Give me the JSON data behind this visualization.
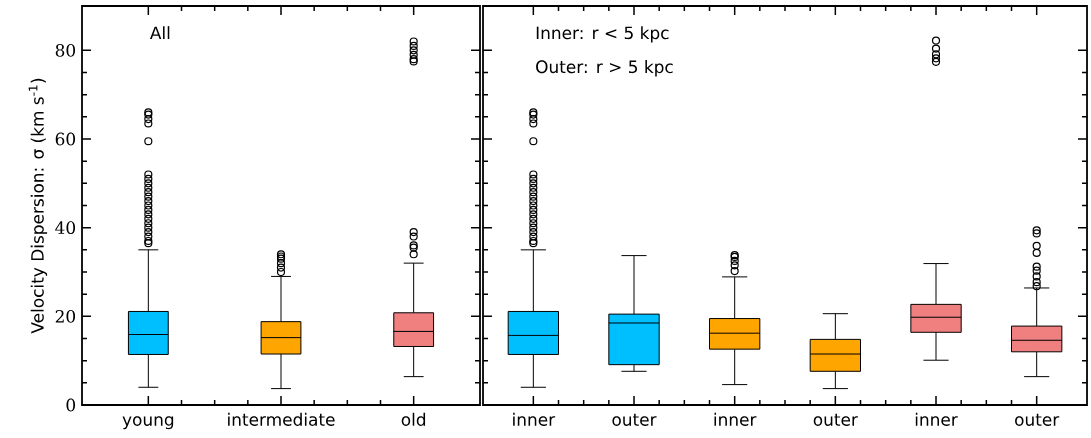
{
  "chart_data": [
    {
      "type": "box",
      "categories": [
        "young",
        "intermediate",
        "old"
      ],
      "colors": [
        "#00bfff",
        "#ffa500",
        "#f08080"
      ],
      "ylabel": "Velocity Dispersion: σ (km s$^{-1}$)",
      "ylim": [
        0,
        90
      ],
      "yticks": [
        0,
        20,
        40,
        60,
        80
      ],
      "marker": "circle",
      "annotations": [
        "All"
      ],
      "boxes": [
        {
          "low": 4.0,
          "q1": 11.4,
          "median": 15.9,
          "q3": 21.1,
          "high": 35.0,
          "outliers": [
            36.5,
            37,
            38,
            39,
            40,
            41,
            42,
            43,
            44,
            45,
            46,
            47,
            48,
            49,
            50,
            51,
            52,
            59.5,
            63.5,
            64.5,
            65.5,
            66
          ]
        },
        {
          "low": 3.7,
          "q1": 11.5,
          "median": 15.2,
          "q3": 18.8,
          "high": 29.0,
          "outliers": [
            30,
            31,
            32,
            33,
            33.5,
            34
          ]
        },
        {
          "low": 6.4,
          "q1": 13.2,
          "median": 16.6,
          "q3": 20.8,
          "high": 32.0,
          "outliers": [
            34,
            35.5,
            36,
            38,
            39,
            77.5,
            78,
            79,
            80,
            81,
            82
          ]
        }
      ]
    },
    {
      "type": "box",
      "categories": [
        "inner",
        "outer",
        "inner",
        "outer",
        "inner",
        "outer"
      ],
      "colors": [
        "#00bfff",
        "#00bfff",
        "#ffa500",
        "#ffa500",
        "#f08080",
        "#f08080"
      ],
      "ylim": [
        0,
        90
      ],
      "yticks": [
        0,
        20,
        40,
        60,
        80
      ],
      "tick_labels": "x",
      "marker": "circle",
      "annotations": [
        "Inner: r < 5 kpc",
        "Outer: r > 5 kpc"
      ],
      "boxes": [
        {
          "low": 4.0,
          "q1": 11.4,
          "median": 15.7,
          "q3": 21.1,
          "high": 35.0,
          "outliers": [
            36.5,
            37,
            38,
            39,
            40,
            41,
            42,
            43,
            44,
            45,
            46,
            47,
            48,
            49,
            50,
            51,
            52,
            59.5,
            63.5,
            64.5,
            65.5,
            66
          ]
        },
        {
          "low": 7.6,
          "q1": 9.1,
          "median": 18.5,
          "q3": 20.5,
          "high": 33.7
        },
        {
          "low": 4.6,
          "q1": 12.6,
          "median": 16.2,
          "q3": 19.5,
          "high": 28.9,
          "outliers": [
            30.2,
            31.5,
            32.5,
            33.4,
            33.8
          ]
        },
        {
          "low": 3.7,
          "q1": 7.6,
          "median": 11.5,
          "q3": 14.8,
          "high": 20.6
        },
        {
          "low": 10.1,
          "q1": 16.4,
          "median": 19.8,
          "q3": 22.7,
          "high": 31.9,
          "outliers": [
            77.4,
            78.2,
            79.1,
            80.4,
            82.2
          ]
        },
        {
          "low": 6.4,
          "q1": 12.0,
          "median": 14.6,
          "q3": 17.8,
          "high": 26.4,
          "outliers": [
            26.8,
            27.7,
            29.0,
            30.3,
            31.2,
            34.3,
            35.9,
            38.7,
            39.4
          ]
        }
      ]
    }
  ]
}
